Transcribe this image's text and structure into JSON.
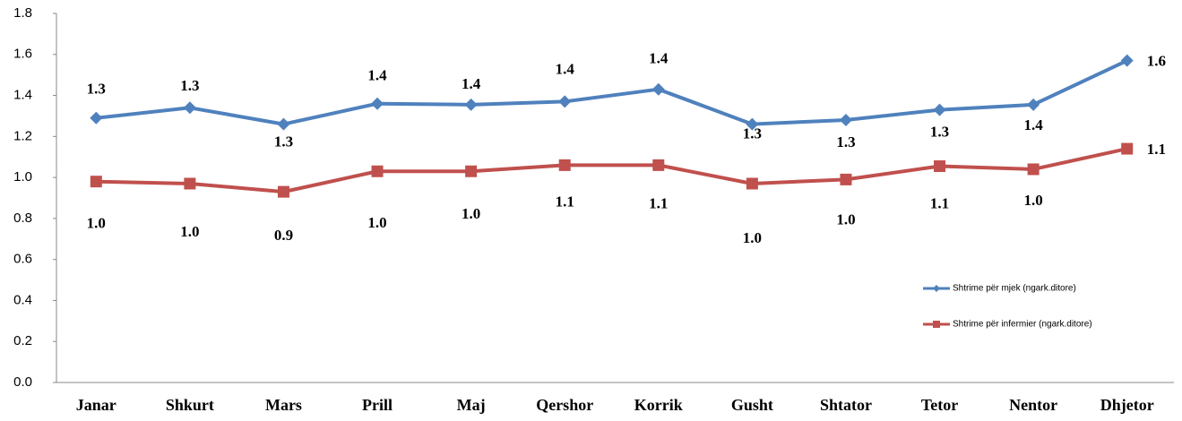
{
  "chart_data": {
    "type": "line",
    "categories": [
      "Janar",
      "Shkurt",
      "Mars",
      "Prill",
      "Maj",
      "Qershor",
      "Korrik",
      "Gusht",
      "Shtator",
      "Tetor",
      "Nentor",
      "Dhjetor"
    ],
    "series": [
      {
        "name": "Shtrime për mjek (ngark.ditore)",
        "color": "#4f81bd",
        "marker": "diamond",
        "values": [
          1.29,
          1.34,
          1.26,
          1.36,
          1.355,
          1.37,
          1.43,
          1.26,
          1.28,
          1.33,
          1.355,
          1.57
        ],
        "value_labels": [
          "1.3",
          "1.3",
          "1.3",
          "1.4",
          "1.4",
          "1.4",
          "1.4",
          "1.3",
          "1.3",
          "1.3",
          "1.4",
          "1.6"
        ]
      },
      {
        "name": "Shtrime për infermier (ngark.ditore)",
        "color": "#c0504d",
        "marker": "square",
        "values": [
          0.98,
          0.97,
          0.93,
          1.03,
          1.03,
          1.06,
          1.06,
          0.97,
          0.99,
          1.055,
          1.04,
          1.14
        ],
        "value_labels": [
          "1.0",
          "1.0",
          "0.9",
          "1.0",
          "1.0",
          "1.1",
          "1.1",
          "1.0",
          "1.0",
          "1.1",
          "1.0",
          "1.1"
        ]
      }
    ],
    "ylim": [
      0,
      1.8
    ],
    "yticks": [
      {
        "value": 0,
        "label": "0.0"
      },
      0.2,
      0.4,
      0.6,
      0.8,
      {
        "value": 1,
        "label": "1.0"
      },
      1.2,
      1.4,
      1.6,
      1.8
    ],
    "grid": false,
    "legend": "right"
  }
}
